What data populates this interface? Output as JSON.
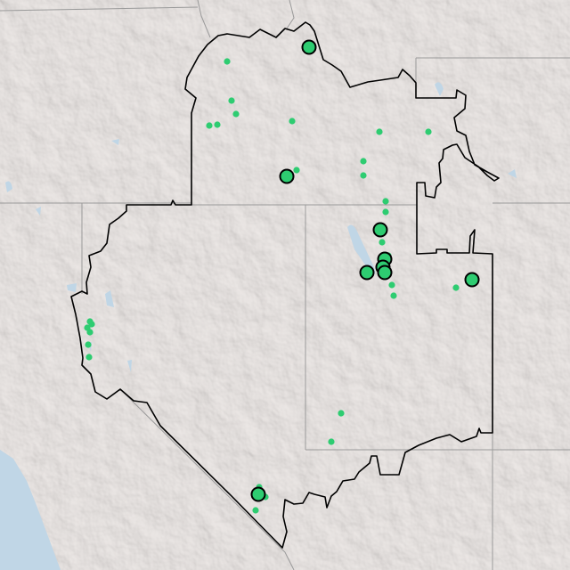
{
  "map": {
    "basemap": "shaded-relief",
    "colors": {
      "land": "#e8e3e1",
      "water": "#c0d6e6",
      "state_line": "#9a9a9a",
      "region_outline": "#000000",
      "marker_fill": "#2ecc71",
      "marker_stroke": "#000000"
    },
    "markers": {
      "large_count": 9,
      "small_count": 29
    }
  }
}
